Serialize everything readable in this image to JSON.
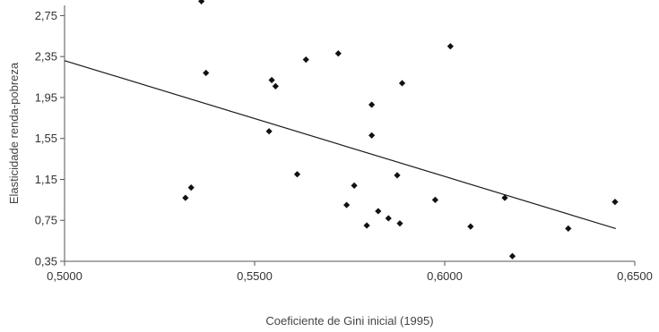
{
  "chart_data": {
    "type": "scatter",
    "xlabel": "Coeficiente de Gini inicial (1995)",
    "ylabel": "Elasticidade renda-pobreza",
    "xlim": [
      0.5,
      0.65
    ],
    "ylim": [
      0.35,
      2.85
    ],
    "x_ticks": [
      "0,5000",
      "0,5500",
      "0,6000",
      "0,6500"
    ],
    "x_tick_values": [
      0.5,
      0.55,
      0.6,
      0.65
    ],
    "y_ticks": [
      "0,35",
      "0,75",
      "1,15",
      "1,55",
      "1,95",
      "2,35",
      "2,75"
    ],
    "y_tick_values": [
      0.35,
      0.75,
      1.15,
      1.55,
      1.95,
      2.35,
      2.75
    ],
    "grid": false,
    "points": [
      {
        "x": 0.536,
        "y": 2.89
      },
      {
        "x": 0.5372,
        "y": 2.19
      },
      {
        "x": 0.5545,
        "y": 2.12
      },
      {
        "x": 0.5555,
        "y": 2.06
      },
      {
        "x": 0.5635,
        "y": 2.32
      },
      {
        "x": 0.572,
        "y": 2.38
      },
      {
        "x": 0.6015,
        "y": 2.45
      },
      {
        "x": 0.5888,
        "y": 2.09
      },
      {
        "x": 0.5808,
        "y": 1.88
      },
      {
        "x": 0.5808,
        "y": 1.58
      },
      {
        "x": 0.5538,
        "y": 1.62
      },
      {
        "x": 0.5612,
        "y": 1.2
      },
      {
        "x": 0.5875,
        "y": 1.19
      },
      {
        "x": 0.5762,
        "y": 1.09
      },
      {
        "x": 0.5333,
        "y": 1.07
      },
      {
        "x": 0.5318,
        "y": 0.97
      },
      {
        "x": 0.5742,
        "y": 0.9
      },
      {
        "x": 0.5825,
        "y": 0.84
      },
      {
        "x": 0.5852,
        "y": 0.77
      },
      {
        "x": 0.5882,
        "y": 0.72
      },
      {
        "x": 0.5795,
        "y": 0.7
      },
      {
        "x": 0.5975,
        "y": 0.95
      },
      {
        "x": 0.6068,
        "y": 0.69
      },
      {
        "x": 0.6158,
        "y": 0.97
      },
      {
        "x": 0.6178,
        "y": 0.4
      },
      {
        "x": 0.6325,
        "y": 0.67
      },
      {
        "x": 0.6448,
        "y": 0.93
      }
    ],
    "trendline": {
      "x": [
        0.5,
        0.645
      ],
      "y": [
        2.31,
        0.67
      ]
    }
  }
}
